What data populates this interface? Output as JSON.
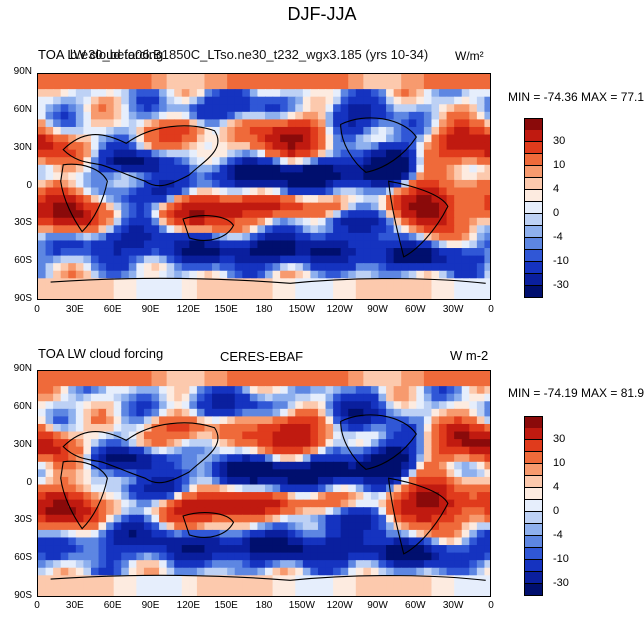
{
  "figure": {
    "title": "DJF-JJA"
  },
  "panels": [
    {
      "left_title": "TOA LW cloud forcing",
      "center_title": "b.e30_beta06.B1850C_LTso.ne30_t232_wgx3.185 (yrs 10-34)",
      "right_title": "W/m²",
      "minmax": "MIN = -74.36 MAX =  77.14"
    },
    {
      "left_title": "TOA LW cloud forcing",
      "center_title": "CERES-EBAF",
      "right_title": "W m-2",
      "minmax": "MIN = -74.19 MAX =  81.98"
    }
  ],
  "axes": {
    "lat_ticks": [
      "90N",
      "60N",
      "30N",
      "0",
      "30S",
      "60S",
      "90S"
    ],
    "lon_ticks": [
      "0",
      "30E",
      "60E",
      "90E",
      "120E",
      "150E",
      "180",
      "150W",
      "120W",
      "90W",
      "60W",
      "30W",
      "0"
    ]
  },
  "colorbar": {
    "labels": [
      "30",
      "10",
      "4",
      "0",
      "-4",
      "-10",
      "-30"
    ],
    "colors": [
      "#8a0a0a",
      "#c01a10",
      "#e03b1c",
      "#ef6a3a",
      "#f79a6e",
      "#fcc9ad",
      "#fdebe0",
      "#e6eefc",
      "#bdd1f5",
      "#8eb0ee",
      "#5d86e2",
      "#3057d6",
      "#1533c0",
      "#0a1f9e",
      "#000f6e"
    ]
  }
}
